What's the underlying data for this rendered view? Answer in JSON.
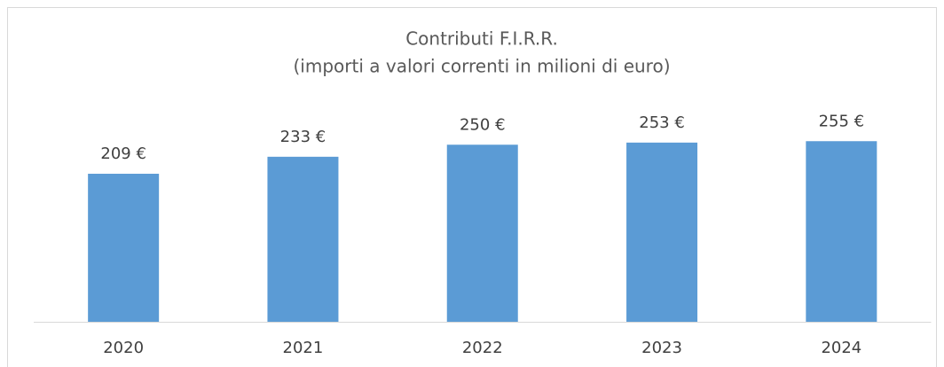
{
  "chart_data": {
    "type": "bar",
    "title": "Contributi F.I.R.R.",
    "subtitle": "(importi a valori correnti in milioni di euro)",
    "categories": [
      "2020",
      "2021",
      "2022",
      "2023",
      "2024"
    ],
    "values": [
      209,
      233,
      250,
      253,
      255
    ],
    "value_labels": [
      "209 €",
      "233 €",
      "250 €",
      "253 €",
      "255 €"
    ],
    "color": "#5b9bd5",
    "ylim": [
      0,
      300
    ]
  }
}
